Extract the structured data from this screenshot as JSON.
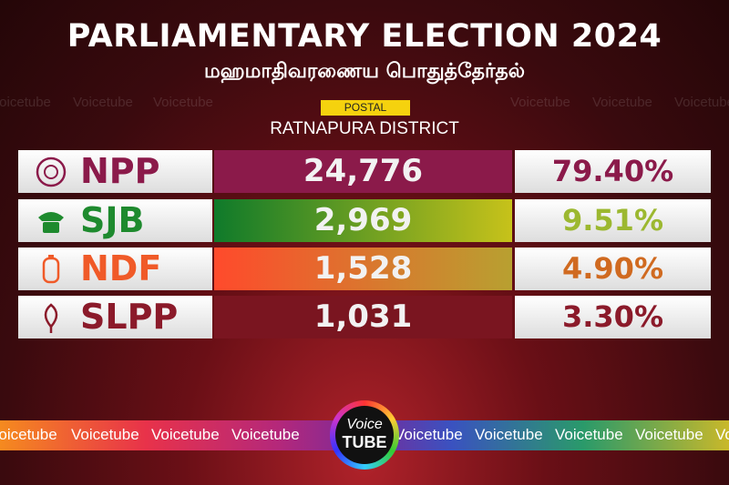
{
  "header": {
    "title": "PARLIAMENTARY ELECTION 2024",
    "subtitle": "மஹமாதிவரணைய பொதுத்தேர்தல்"
  },
  "tag": "POSTAL",
  "district": "RATNAPURA DISTRICT",
  "rows": [
    {
      "party": "NPP",
      "votes": "24,776",
      "percent": "79.40%"
    },
    {
      "party": "SJB",
      "votes": "2,969",
      "percent": "9.51%"
    },
    {
      "party": "NDF",
      "votes": "1,528",
      "percent": "4.90%"
    },
    {
      "party": "SLPP",
      "votes": "1,031",
      "percent": "3.30%"
    }
  ],
  "watermark": "Voicetube",
  "logo": {
    "top": "Voice",
    "bottom": "TUBE"
  }
}
